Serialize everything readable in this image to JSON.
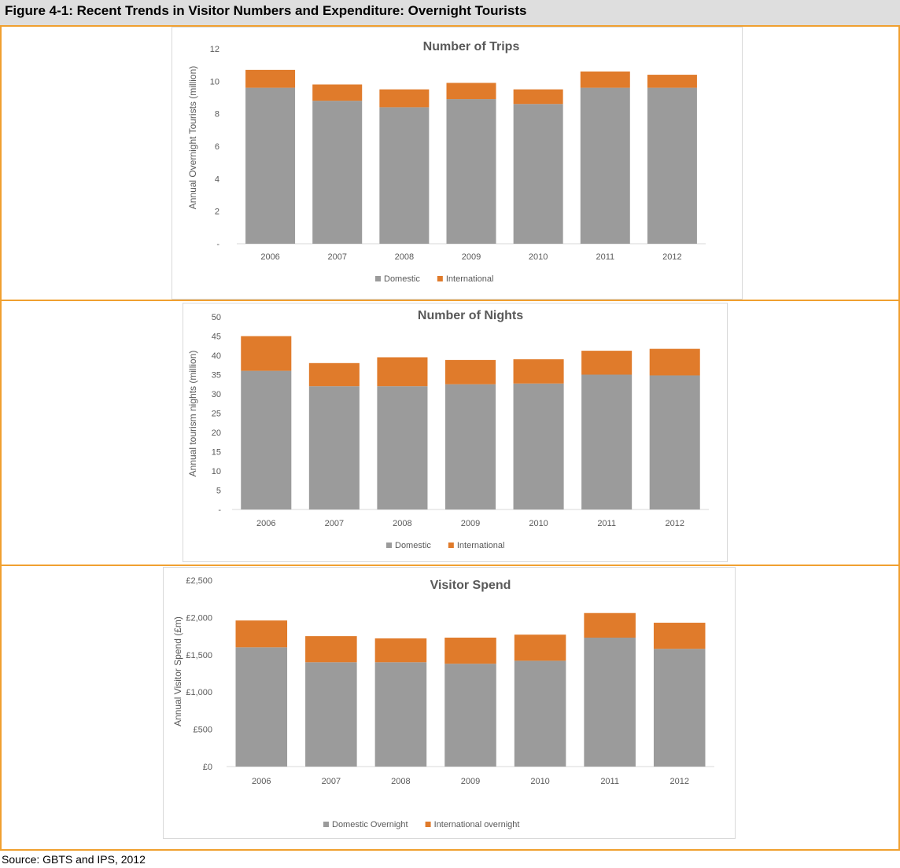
{
  "figure_title": "Figure 4-1: Recent Trends in Visitor Numbers and Expenditure: Overnight Tourists",
  "source": "Source: GBTS and IPS, 2012",
  "colors": {
    "domestic": "#9b9b9b",
    "international": "#e07b2b",
    "accent": "#f0a030",
    "title_bar": "#dedede"
  },
  "chart_data": [
    {
      "type": "bar",
      "stacked": true,
      "title": "Number of Trips",
      "ylabel": "Annual Overnight Tourists (million)",
      "xlabel": "",
      "categories": [
        "2006",
        "2007",
        "2008",
        "2009",
        "2010",
        "2011",
        "2012"
      ],
      "series": [
        {
          "name": "Domestic",
          "values": [
            9.6,
            8.8,
            8.4,
            8.9,
            8.6,
            9.6,
            9.6
          ]
        },
        {
          "name": "International",
          "values": [
            1.1,
            1.0,
            1.1,
            1.0,
            0.9,
            1.0,
            0.8
          ]
        }
      ],
      "ylim": [
        0,
        12
      ],
      "yticks": [
        "-",
        "2",
        "4",
        "6",
        "8",
        "10",
        "12"
      ],
      "grid": false,
      "legend": "bottom"
    },
    {
      "type": "bar",
      "stacked": true,
      "title": "Number of Nights",
      "ylabel": "Annual tourism nights (million)",
      "xlabel": "",
      "categories": [
        "2006",
        "2007",
        "2008",
        "2009",
        "2010",
        "2011",
        "2012"
      ],
      "series": [
        {
          "name": "Domestic",
          "values": [
            36.0,
            32.0,
            32.0,
            32.5,
            32.7,
            35.0,
            34.8
          ]
        },
        {
          "name": "International",
          "values": [
            9.0,
            6.0,
            7.5,
            6.3,
            6.3,
            6.2,
            6.9
          ]
        }
      ],
      "ylim": [
        0,
        50
      ],
      "yticks": [
        "-",
        "5",
        "10",
        "15",
        "20",
        "25",
        "30",
        "35",
        "40",
        "45",
        "50"
      ],
      "grid": false,
      "legend": "bottom"
    },
    {
      "type": "bar",
      "stacked": true,
      "title": "Visitor Spend",
      "ylabel": "Annual Visitor Spend (£m)",
      "xlabel": "",
      "categories": [
        "2006",
        "2007",
        "2008",
        "2009",
        "2010",
        "2011",
        "2012"
      ],
      "series": [
        {
          "name": "Domestic Overnight",
          "values": [
            1600,
            1400,
            1400,
            1380,
            1420,
            1730,
            1580
          ]
        },
        {
          "name": "International overnight",
          "values": [
            360,
            350,
            320,
            350,
            350,
            330,
            350
          ]
        }
      ],
      "ylim": [
        0,
        2500
      ],
      "yticks": [
        "£0",
        "£500",
        "£1,000",
        "£1,500",
        "£2,000",
        "£2,500"
      ],
      "grid": false,
      "legend": "bottom"
    }
  ]
}
